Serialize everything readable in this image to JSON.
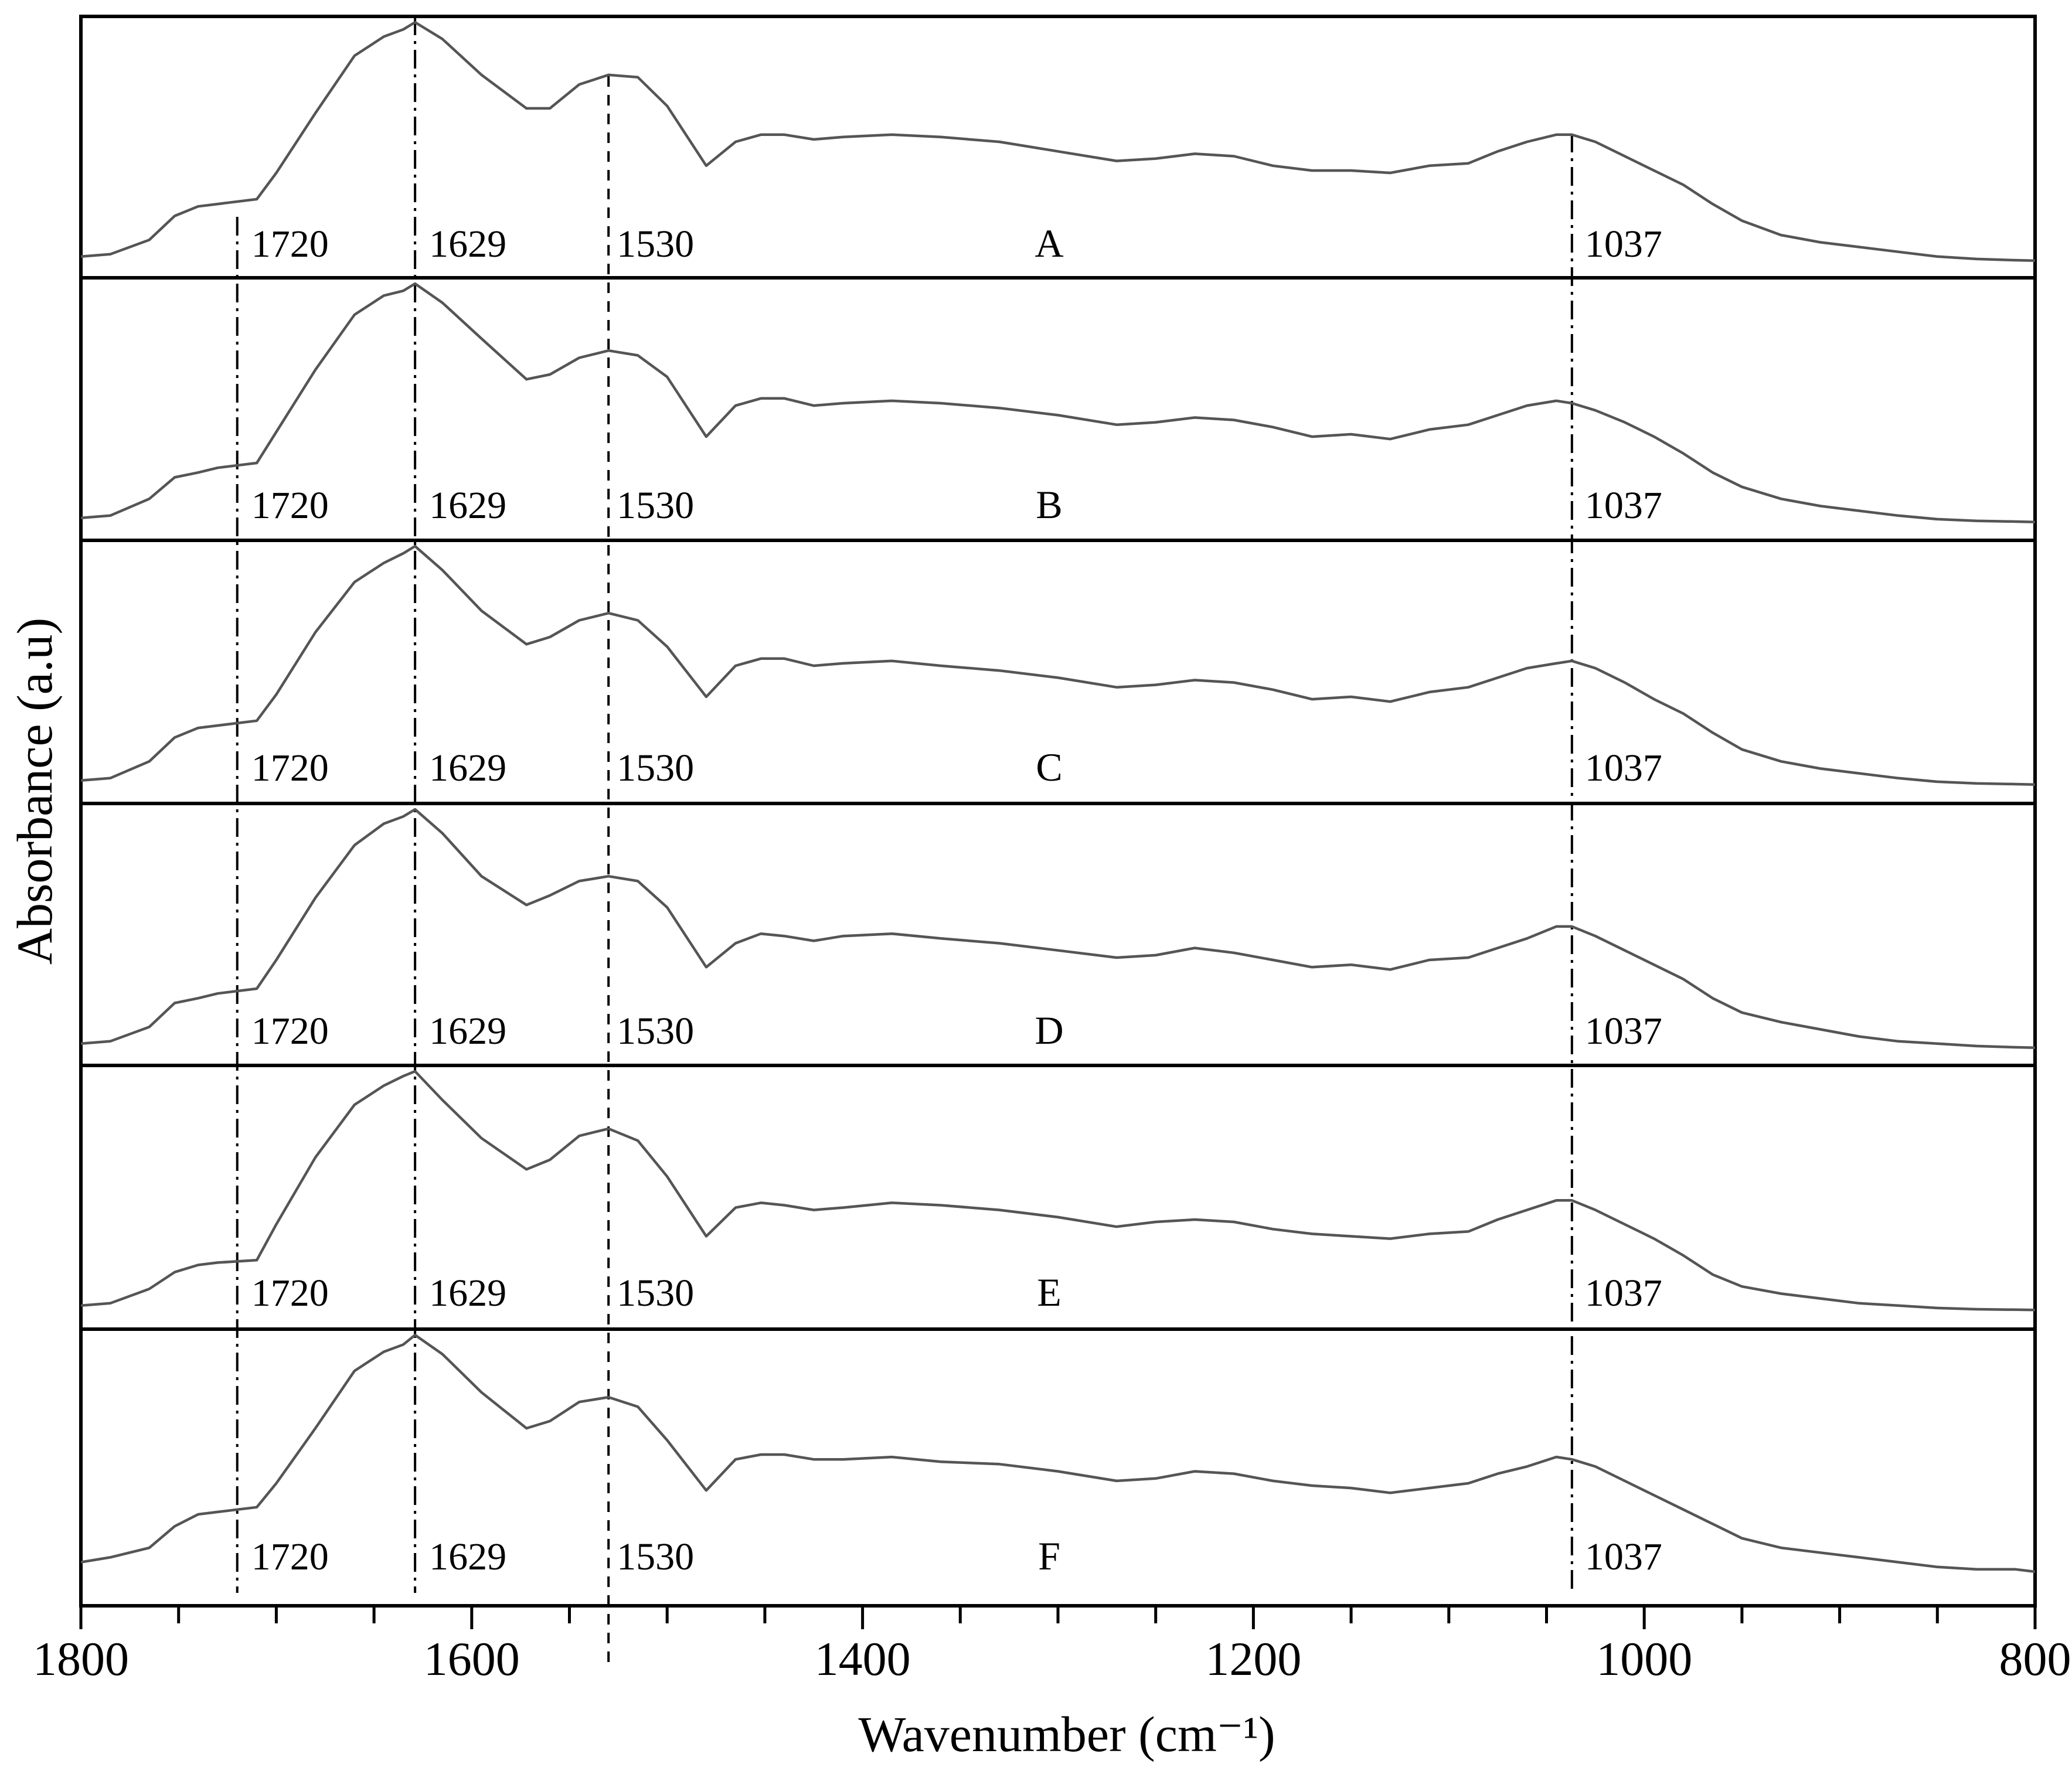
{
  "chart_data": {
    "type": "line",
    "xlabel": "Wavenumber (cm⁻¹)",
    "ylabel": "Absorbance (a.u)",
    "xlim": [
      1800,
      800
    ],
    "x_reversed": true,
    "x_ticks": [
      "1800",
      "1600",
      "1400",
      "1200",
      "1000",
      "800"
    ],
    "grid": false,
    "x_profile": [
      1800,
      1785,
      1765,
      1752,
      1740,
      1730,
      1710,
      1700,
      1680,
      1660,
      1645,
      1635,
      1629,
      1615,
      1595,
      1572,
      1560,
      1545,
      1530,
      1515,
      1500,
      1480,
      1465,
      1452,
      1440,
      1425,
      1410,
      1385,
      1360,
      1330,
      1300,
      1270,
      1250,
      1230,
      1210,
      1190,
      1170,
      1150,
      1130,
      1110,
      1090,
      1075,
      1060,
      1045,
      1037,
      1025,
      1010,
      995,
      980,
      965,
      950,
      930,
      910,
      890,
      870,
      850,
      830,
      810,
      800
    ],
    "reference_lines": [
      {
        "x": 1720,
        "label": "1720"
      },
      {
        "x": 1629,
        "label": "1629"
      },
      {
        "x": 1530,
        "label": "1530"
      },
      {
        "x": 1037,
        "label": "1037"
      }
    ],
    "series": [
      {
        "name": "A",
        "y": [
          0.02,
          0.03,
          0.09,
          0.19,
          0.23,
          0.24,
          0.26,
          0.37,
          0.62,
          0.86,
          0.94,
          0.97,
          1.0,
          0.93,
          0.78,
          0.64,
          0.64,
          0.74,
          0.78,
          0.77,
          0.65,
          0.4,
          0.5,
          0.53,
          0.53,
          0.51,
          0.52,
          0.53,
          0.52,
          0.5,
          0.46,
          0.42,
          0.43,
          0.45,
          0.44,
          0.4,
          0.38,
          0.38,
          0.37,
          0.4,
          0.41,
          0.46,
          0.5,
          0.53,
          0.53,
          0.5,
          0.44,
          0.38,
          0.32,
          0.24,
          0.17,
          0.11,
          0.08,
          0.06,
          0.04,
          0.02,
          0.01,
          0.005,
          0.003
        ]
      },
      {
        "name": "B",
        "y": [
          0.02,
          0.03,
          0.1,
          0.19,
          0.21,
          0.23,
          0.25,
          0.38,
          0.64,
          0.87,
          0.95,
          0.97,
          1.0,
          0.92,
          0.77,
          0.6,
          0.62,
          0.69,
          0.72,
          0.7,
          0.61,
          0.36,
          0.49,
          0.52,
          0.52,
          0.49,
          0.5,
          0.51,
          0.5,
          0.48,
          0.45,
          0.41,
          0.42,
          0.44,
          0.43,
          0.4,
          0.36,
          0.37,
          0.35,
          0.39,
          0.41,
          0.45,
          0.49,
          0.51,
          0.5,
          0.47,
          0.42,
          0.36,
          0.29,
          0.21,
          0.15,
          0.1,
          0.07,
          0.05,
          0.03,
          0.015,
          0.008,
          0.005,
          0.003
        ]
      },
      {
        "name": "C",
        "y": [
          0.02,
          0.03,
          0.1,
          0.2,
          0.24,
          0.25,
          0.27,
          0.38,
          0.64,
          0.85,
          0.93,
          0.97,
          1.0,
          0.9,
          0.73,
          0.59,
          0.62,
          0.69,
          0.72,
          0.69,
          0.58,
          0.37,
          0.5,
          0.53,
          0.53,
          0.5,
          0.51,
          0.52,
          0.5,
          0.48,
          0.45,
          0.41,
          0.42,
          0.44,
          0.43,
          0.4,
          0.36,
          0.37,
          0.35,
          0.39,
          0.41,
          0.45,
          0.49,
          0.51,
          0.52,
          0.49,
          0.43,
          0.36,
          0.3,
          0.22,
          0.15,
          0.1,
          0.07,
          0.05,
          0.03,
          0.015,
          0.008,
          0.005,
          0.003
        ]
      },
      {
        "name": "D",
        "y": [
          0.02,
          0.03,
          0.09,
          0.19,
          0.21,
          0.23,
          0.25,
          0.37,
          0.63,
          0.85,
          0.94,
          0.97,
          1.0,
          0.9,
          0.72,
          0.6,
          0.64,
          0.7,
          0.72,
          0.7,
          0.59,
          0.34,
          0.44,
          0.48,
          0.47,
          0.45,
          0.47,
          0.48,
          0.46,
          0.44,
          0.41,
          0.38,
          0.39,
          0.42,
          0.4,
          0.37,
          0.34,
          0.35,
          0.33,
          0.37,
          0.38,
          0.42,
          0.46,
          0.51,
          0.51,
          0.47,
          0.41,
          0.35,
          0.29,
          0.21,
          0.15,
          0.11,
          0.08,
          0.05,
          0.03,
          0.02,
          0.01,
          0.005,
          0.003
        ]
      },
      {
        "name": "E",
        "y": [
          0.02,
          0.03,
          0.09,
          0.16,
          0.19,
          0.2,
          0.21,
          0.36,
          0.64,
          0.86,
          0.94,
          0.98,
          1.0,
          0.88,
          0.72,
          0.59,
          0.63,
          0.73,
          0.76,
          0.71,
          0.56,
          0.31,
          0.43,
          0.45,
          0.44,
          0.42,
          0.43,
          0.45,
          0.44,
          0.42,
          0.39,
          0.35,
          0.37,
          0.38,
          0.37,
          0.34,
          0.32,
          0.31,
          0.3,
          0.32,
          0.33,
          0.38,
          0.42,
          0.46,
          0.46,
          0.42,
          0.36,
          0.3,
          0.23,
          0.15,
          0.1,
          0.07,
          0.05,
          0.03,
          0.02,
          0.01,
          0.005,
          0.003,
          0.002
        ]
      },
      {
        "name": "F",
        "y": [
          0.05,
          0.07,
          0.11,
          0.2,
          0.25,
          0.26,
          0.28,
          0.38,
          0.61,
          0.85,
          0.93,
          0.96,
          1.0,
          0.92,
          0.76,
          0.61,
          0.64,
          0.72,
          0.74,
          0.7,
          0.56,
          0.35,
          0.48,
          0.5,
          0.5,
          0.48,
          0.48,
          0.49,
          0.47,
          0.46,
          0.43,
          0.39,
          0.4,
          0.43,
          0.42,
          0.39,
          0.37,
          0.36,
          0.34,
          0.36,
          0.38,
          0.42,
          0.45,
          0.49,
          0.48,
          0.45,
          0.39,
          0.33,
          0.27,
          0.21,
          0.15,
          0.11,
          0.09,
          0.07,
          0.05,
          0.03,
          0.02,
          0.02,
          0.01
        ]
      }
    ]
  }
}
